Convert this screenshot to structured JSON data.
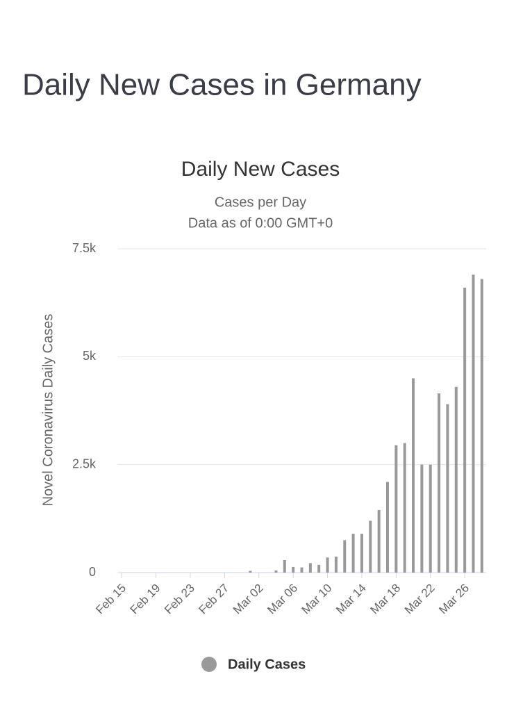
{
  "page_title": "Daily New Cases in Germany",
  "chart_data": {
    "type": "bar",
    "title": "Daily New Cases",
    "subtitle": [
      "Cases per Day",
      "Data as of 0:00 GMT+0"
    ],
    "y_label": "Novel Coronavirus Daily Cases",
    "categories": [
      "Feb 15",
      null,
      null,
      null,
      "Feb 19",
      null,
      null,
      null,
      "Feb 23",
      null,
      null,
      null,
      "Feb 27",
      null,
      null,
      null,
      "Mar 02",
      null,
      null,
      null,
      "Mar 06",
      null,
      null,
      null,
      "Mar 10",
      null,
      null,
      null,
      "Mar 14",
      null,
      null,
      null,
      "Mar 18",
      null,
      null,
      null,
      "Mar 22",
      null,
      null,
      null,
      "Mar 26",
      null,
      null
    ],
    "series": [
      {
        "name": "Daily Cases",
        "color": "#999999",
        "values": [
          0,
          0,
          0,
          0,
          0,
          0,
          0,
          0,
          0,
          0,
          0,
          0,
          0,
          0,
          0,
          40,
          0,
          0,
          50,
          290,
          130,
          120,
          220,
          180,
          350,
          370,
          750,
          900,
          900,
          1200,
          1450,
          2100,
          2950,
          3000,
          4500,
          2500,
          2500,
          4150,
          3900,
          4300,
          6600,
          6900,
          6800
        ]
      }
    ],
    "ylim": [
      0,
      7500
    ],
    "yticks": [
      0,
      {
        "value": 2500,
        "label": "2.5k"
      },
      {
        "value": 5000,
        "label": "5k"
      },
      {
        "value": 7500,
        "label": "7.5k"
      }
    ],
    "grid": true
  }
}
